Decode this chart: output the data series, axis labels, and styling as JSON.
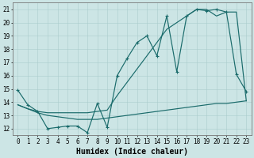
{
  "xlabel": "Humidex (Indice chaleur)",
  "xlim": [
    -0.5,
    23.5
  ],
  "ylim": [
    11.5,
    21.5
  ],
  "yticks": [
    12,
    13,
    14,
    15,
    16,
    17,
    18,
    19,
    20,
    21
  ],
  "xticks": [
    0,
    1,
    2,
    3,
    4,
    5,
    6,
    7,
    8,
    9,
    10,
    11,
    12,
    13,
    14,
    15,
    16,
    17,
    18,
    19,
    20,
    21,
    22,
    23
  ],
  "bg_color": "#cce5e5",
  "line_color": "#1a6b6b",
  "series": [
    {
      "x": [
        0,
        1,
        2,
        3,
        4,
        5,
        6,
        7,
        8,
        9,
        10,
        11,
        12,
        13,
        14,
        15,
        16,
        17,
        18,
        19,
        20,
        21,
        22,
        23
      ],
      "y": [
        14.9,
        13.8,
        13.3,
        12.0,
        12.1,
        12.2,
        12.2,
        11.7,
        13.9,
        12.1,
        16.0,
        17.3,
        18.5,
        19.0,
        17.5,
        20.5,
        16.3,
        20.5,
        21.0,
        20.9,
        21.0,
        20.8,
        16.1,
        14.8
      ],
      "marker": true
    },
    {
      "x": [
        0,
        1,
        2,
        3,
        4,
        5,
        6,
        7,
        8,
        9,
        10,
        11,
        12,
        13,
        14,
        15,
        16,
        17,
        18,
        19,
        20,
        21,
        22,
        23
      ],
      "y": [
        13.8,
        13.5,
        13.3,
        13.2,
        13.2,
        13.2,
        13.2,
        13.2,
        13.3,
        13.4,
        14.5,
        15.5,
        16.5,
        17.5,
        18.5,
        19.5,
        20.0,
        20.5,
        21.0,
        21.0,
        20.5,
        20.8,
        20.8,
        14.1
      ],
      "marker": false
    },
    {
      "x": [
        0,
        1,
        2,
        3,
        4,
        5,
        6,
        7,
        8,
        9,
        10,
        11,
        12,
        13,
        14,
        15,
        16,
        17,
        18,
        19,
        20,
        21,
        22,
        23
      ],
      "y": [
        13.8,
        13.5,
        13.2,
        13.0,
        12.9,
        12.8,
        12.7,
        12.7,
        12.7,
        12.8,
        12.9,
        13.0,
        13.1,
        13.2,
        13.3,
        13.4,
        13.5,
        13.6,
        13.7,
        13.8,
        13.9,
        13.9,
        14.0,
        14.1
      ],
      "marker": false
    }
  ],
  "grid_color": "#aacccc",
  "tick_fontsize": 5.5,
  "label_fontsize": 7.0,
  "linewidth": 0.85
}
